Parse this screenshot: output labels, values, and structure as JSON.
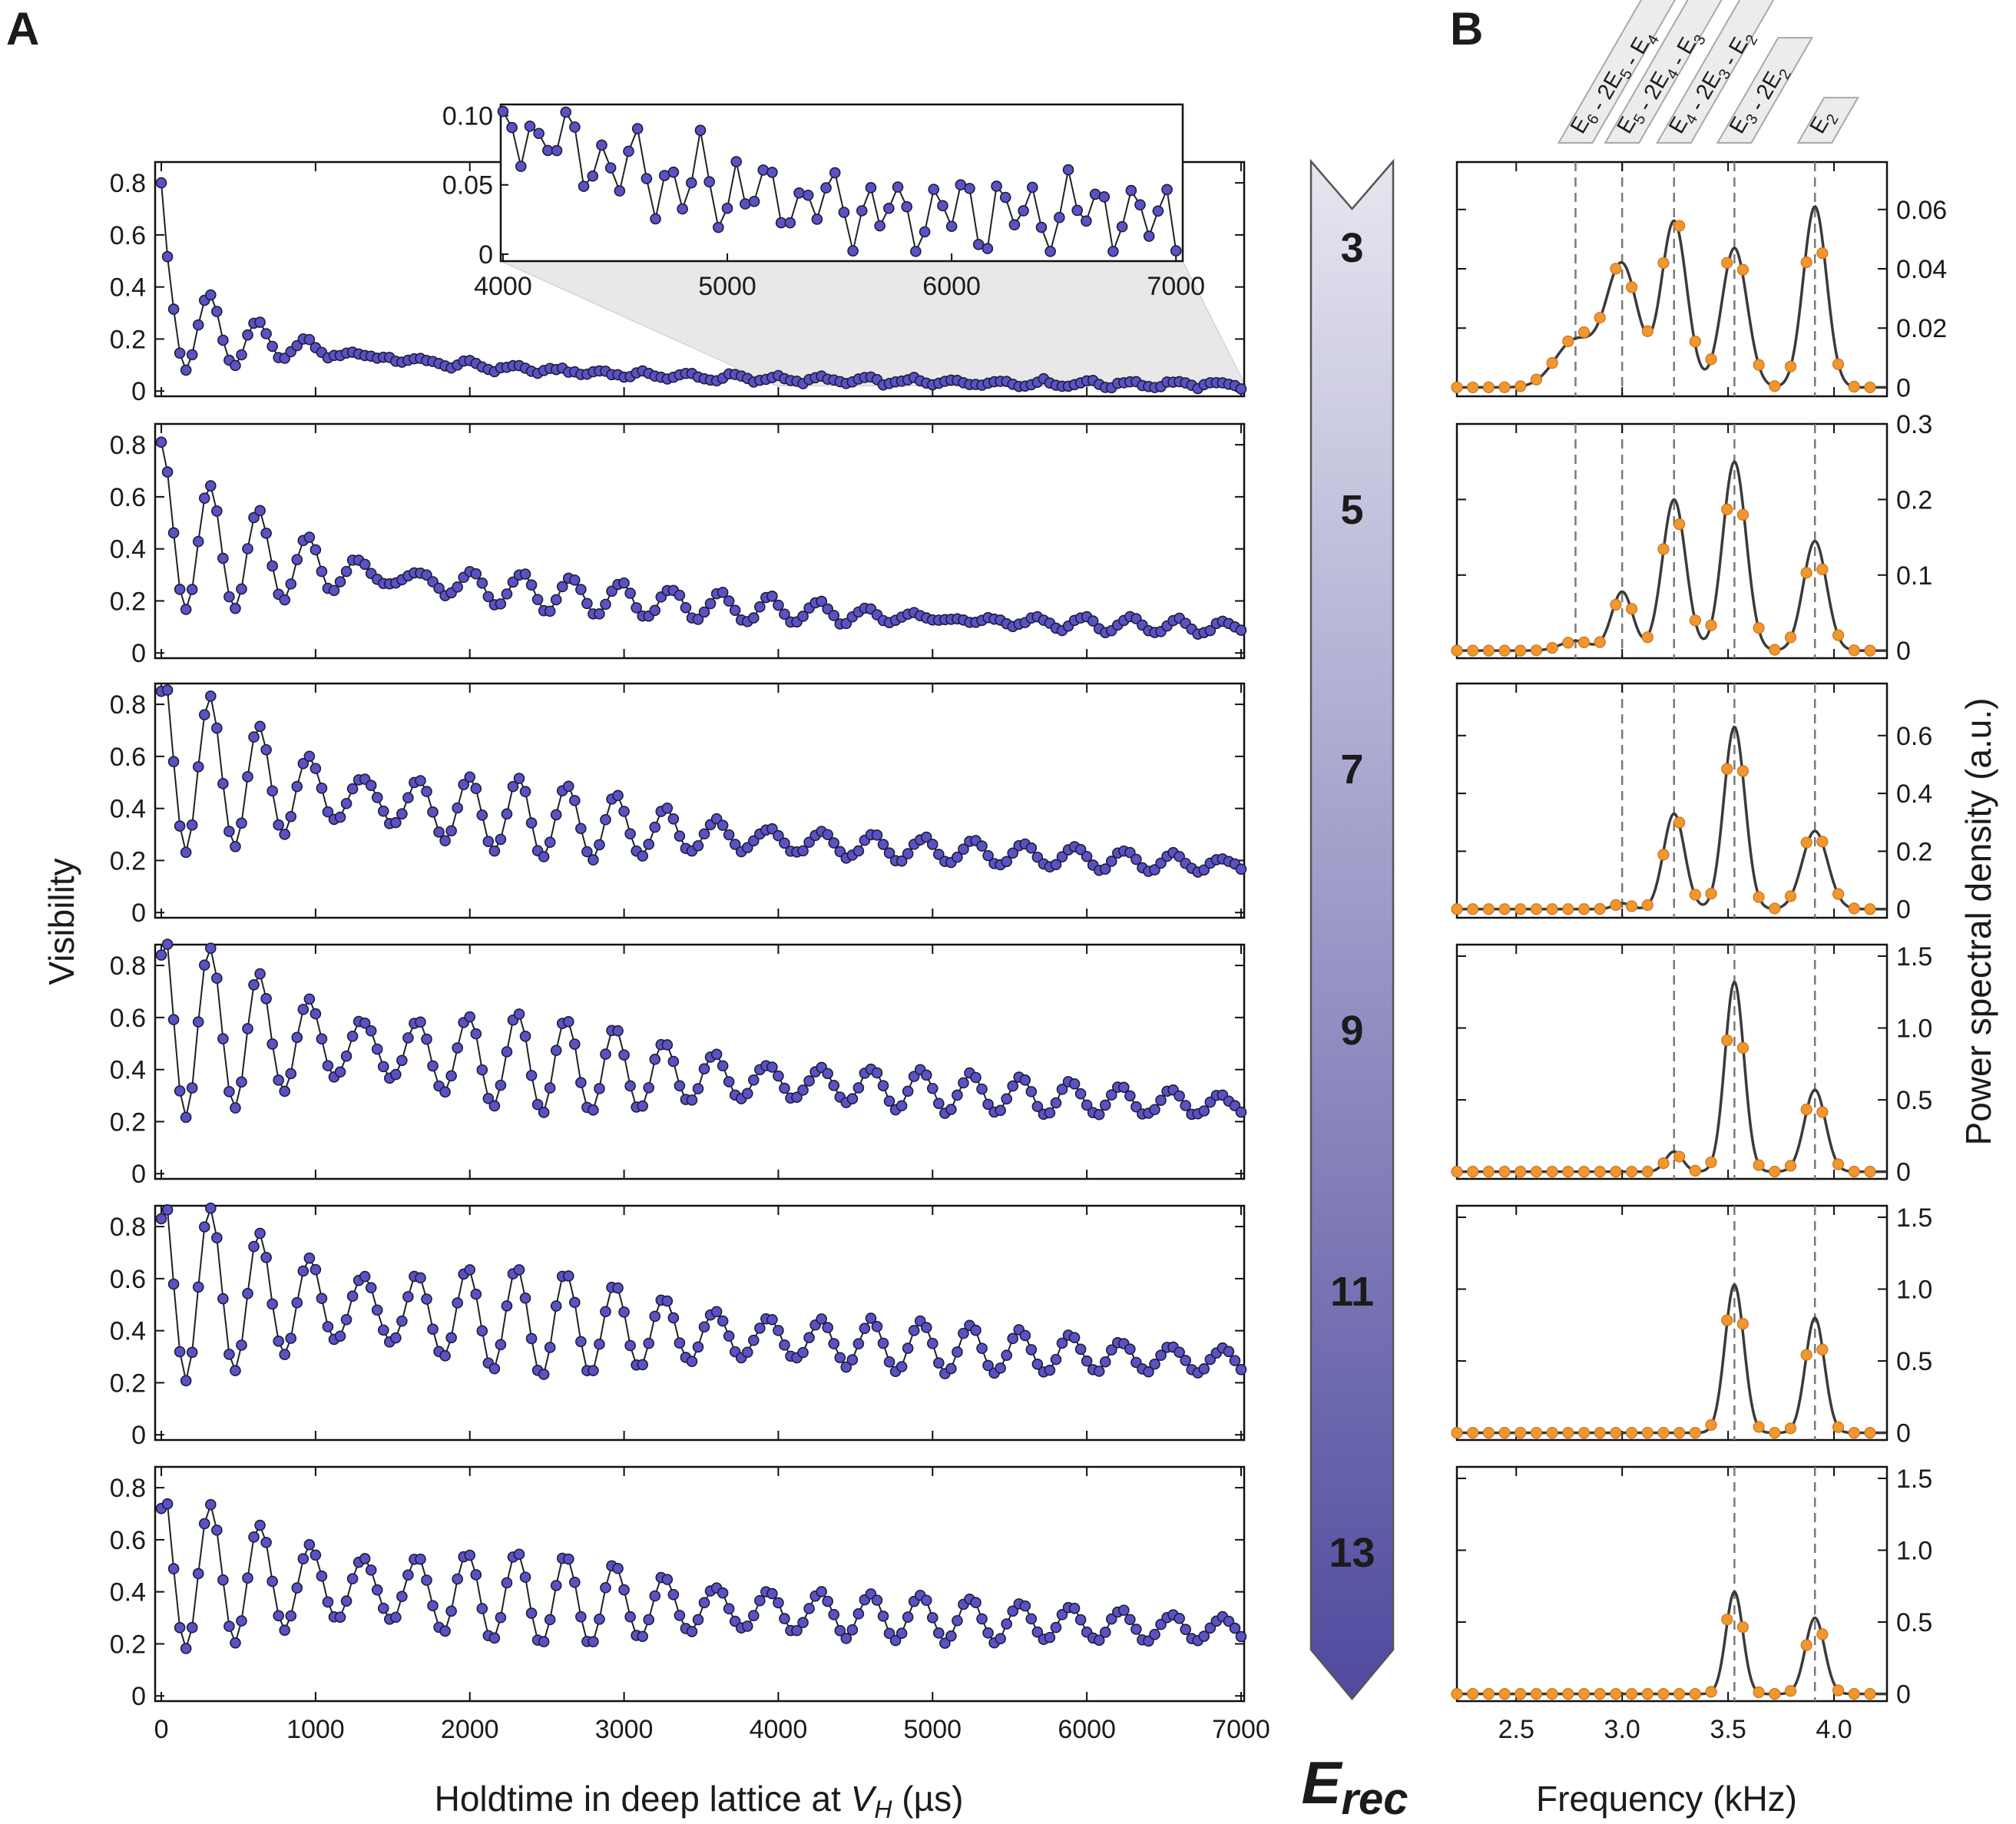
{
  "figure": {
    "panel_a_label": "A",
    "panel_b_label": "B",
    "arrow_unit": "E",
    "arrow_unit_sub": "rec",
    "arrow_depths": [
      "3",
      "5",
      "7",
      "9",
      "11",
      "13"
    ],
    "colors": {
      "visibility_marker": "#5a52c4",
      "visibility_line": "#222222",
      "psd_marker": "#f2962e",
      "psd_fit": "#3a3a3a",
      "arrow_top": "#e6e6f0",
      "arrow_bottom": "#4f4a9e",
      "inset_shade": "#e8e8e8"
    }
  },
  "chart_data": [
    {
      "type": "line",
      "id": "visibility",
      "title": "",
      "xlabel": "Holdtime in deep lattice at V_H (µs)",
      "xlabel_main": "Holdtime in deep lattice at ",
      "xlabel_var": "V",
      "xlabel_sub": "H",
      "xlabel_tail": " (µs)",
      "ylabel": "Visibility",
      "xlim": [
        -40,
        7020
      ],
      "ylim": [
        -0.02,
        0.88
      ],
      "xticks": [
        0,
        1000,
        2000,
        3000,
        4000,
        5000,
        6000,
        7000
      ],
      "xtick_labels": [
        "0",
        "1000",
        "2000",
        "3000",
        "4000",
        "5000",
        "6000",
        "7000"
      ],
      "yticks": [
        0,
        0.2,
        0.4,
        0.6,
        0.8
      ],
      "ytick_labels": [
        "0",
        "0.2",
        "0.4",
        "0.6",
        "0.8"
      ],
      "sample_interval_us": 40,
      "series": [
        {
          "name": "3 Erec",
          "start": 0.8,
          "offset": 0.02,
          "env_amp": 0.24,
          "env_tau": 1800,
          "osc_amp": 0.22,
          "osc_tau": 700,
          "freq_khz": 3.02,
          "beat_khz": 0.26,
          "beat_mix": 0.45
        },
        {
          "name": "5 Erec",
          "start": 0.81,
          "offset": 0.05,
          "env_amp": 0.38,
          "env_tau": 3300,
          "osc_amp": 0.28,
          "osc_tau": 2400,
          "freq_khz": 3.03,
          "beat_khz": 0.3,
          "beat_mix": 0.4
        },
        {
          "name": "7 Erec",
          "start": 0.85,
          "offset": 0.08,
          "env_amp": 0.48,
          "env_tau": 4500,
          "osc_amp": 0.34,
          "osc_tau": 3000,
          "freq_khz": 3.04,
          "beat_khz": 0.36,
          "beat_mix": 0.3
        },
        {
          "name": "9 Erec",
          "start": 0.84,
          "offset": 0.1,
          "env_amp": 0.47,
          "env_tau": 6500,
          "osc_amp": 0.36,
          "osc_tau": 3800,
          "freq_khz": 3.05,
          "beat_khz": 0.36,
          "beat_mix": 0.28
        },
        {
          "name": "11 Erec",
          "start": 0.83,
          "offset": 0.1,
          "env_amp": 0.46,
          "env_tau": 7500,
          "osc_amp": 0.36,
          "osc_tau": 4200,
          "freq_khz": 3.05,
          "beat_khz": 0.37,
          "beat_mix": 0.25
        },
        {
          "name": "13 Erec",
          "start": 0.72,
          "offset": 0.1,
          "env_amp": 0.37,
          "env_tau": 8000,
          "osc_amp": 0.3,
          "osc_tau": 4500,
          "freq_khz": 3.05,
          "beat_khz": 0.37,
          "beat_mix": 0.22
        }
      ],
      "inset": {
        "xlim": [
          3990,
          7030
        ],
        "ylim": [
          -0.005,
          0.108
        ],
        "xticks": [
          4000,
          5000,
          6000,
          7000
        ],
        "xtick_labels": [
          "4000",
          "5000",
          "6000",
          "7000"
        ],
        "yticks": [
          0,
          0.05,
          0.1
        ],
        "ytick_labels": [
          "0",
          "0.05",
          "0.10"
        ]
      }
    },
    {
      "type": "line",
      "id": "psd",
      "title": "",
      "xlabel": "Frequency (kHz)",
      "ylabel": "Power spectral density (a.u.)",
      "xlim": [
        2.22,
        4.25
      ],
      "xticks": [
        2.5,
        3.0,
        3.5,
        4.0
      ],
      "xtick_labels": [
        "2.5",
        "3.0",
        "3.5",
        "4.0"
      ],
      "sample_freqs": [
        2.22,
        2.295,
        2.37,
        2.445,
        2.52,
        2.595,
        2.67,
        2.745,
        2.82,
        2.895,
        2.97,
        3.045,
        3.12,
        3.195,
        3.27,
        3.345,
        3.42,
        3.495,
        3.57,
        3.645,
        3.72,
        3.795,
        3.87,
        3.945,
        4.02,
        4.095,
        4.17
      ],
      "transition_freqs_khz": [
        2.78,
        3.0,
        3.245,
        3.53,
        3.91
      ],
      "transition_labels": [
        [
          "E",
          "6",
          " - 2E",
          "5",
          " - E",
          "4"
        ],
        [
          "E",
          "5",
          " - 2E",
          "4",
          " - E",
          "3"
        ],
        [
          "E",
          "4",
          " - 2E",
          "3",
          " - E",
          "2"
        ],
        [
          "E",
          "3",
          " - 2E",
          "2",
          "",
          ""
        ],
        [
          "E",
          "2",
          "",
          "",
          "",
          ""
        ]
      ],
      "panels": [
        {
          "name": "3 Erec",
          "ylim": [
            -0.003,
            0.076
          ],
          "yticks": [
            0,
            0.02,
            0.04,
            0.06
          ],
          "ytick_labels": [
            "0",
            "0.02",
            "0.04",
            "0.06"
          ],
          "peaks_khz": [
            2.78,
            3.0,
            3.245,
            3.53,
            3.91
          ],
          "peak_heights": [
            0.016,
            0.041,
            0.056,
            0.047,
            0.061
          ],
          "peak_widths": [
            0.095,
            0.075,
            0.06,
            0.06,
            0.055
          ],
          "dashed_lines": [
            2.78,
            3.0,
            3.245,
            3.53,
            3.91
          ]
        },
        {
          "name": "5 Erec",
          "ylim": [
            -0.01,
            0.3
          ],
          "yticks": [
            0,
            0.1,
            0.2,
            0.3
          ],
          "ytick_labels": [
            "0",
            "0.1",
            "0.2",
            "0.3"
          ],
          "peaks_khz": [
            2.78,
            3.0,
            3.245,
            3.53,
            3.91
          ],
          "peak_heights": [
            0.013,
            0.078,
            0.2,
            0.25,
            0.145
          ],
          "peak_widths": [
            0.07,
            0.05,
            0.055,
            0.055,
            0.055
          ],
          "dashed_lines": [
            2.78,
            3.0,
            3.245,
            3.53,
            3.91
          ]
        },
        {
          "name": "7 Erec",
          "ylim": [
            -0.03,
            0.78
          ],
          "yticks": [
            0,
            0.2,
            0.4,
            0.6
          ],
          "ytick_labels": [
            "0",
            "0.2",
            "0.4",
            "0.6"
          ],
          "peaks_khz": [
            3.0,
            3.245,
            3.53,
            3.91
          ],
          "peak_heights": [
            0.02,
            0.33,
            0.63,
            0.27
          ],
          "peak_widths": [
            0.04,
            0.05,
            0.05,
            0.06
          ],
          "dashed_lines": [
            3.0,
            3.245,
            3.53,
            3.91
          ]
        },
        {
          "name": "9 Erec",
          "ylim": [
            -0.05,
            1.58
          ],
          "yticks": [
            0,
            0.5,
            1.0,
            1.5
          ],
          "ytick_labels": [
            "0",
            "0.5",
            "1.0",
            "1.5"
          ],
          "peaks_khz": [
            3.245,
            3.53,
            3.91
          ],
          "peak_heights": [
            0.14,
            1.32,
            0.57
          ],
          "peak_widths": [
            0.04,
            0.045,
            0.05
          ],
          "dashed_lines": [
            3.245,
            3.53,
            3.91
          ]
        },
        {
          "name": "11 Erec",
          "ylim": [
            -0.05,
            1.58
          ],
          "yticks": [
            0,
            0.5,
            1.0,
            1.5
          ],
          "ytick_labels": [
            "0",
            "0.5",
            "1.0",
            "1.5"
          ],
          "peaks_khz": [
            3.53,
            3.91
          ],
          "peak_heights": [
            1.03,
            0.8
          ],
          "peak_widths": [
            0.045,
            0.045
          ],
          "dashed_lines": [
            3.53,
            3.91
          ]
        },
        {
          "name": "13 Erec",
          "ylim": [
            -0.05,
            1.58
          ],
          "yticks": [
            0,
            0.5,
            1.0,
            1.5
          ],
          "ytick_labels": [
            "0",
            "0.5",
            "1.0",
            "1.5"
          ],
          "peaks_khz": [
            3.53,
            3.91
          ],
          "peak_heights": [
            0.71,
            0.53
          ],
          "peak_widths": [
            0.04,
            0.045
          ],
          "dashed_lines": [
            3.53,
            3.91
          ]
        }
      ]
    }
  ]
}
